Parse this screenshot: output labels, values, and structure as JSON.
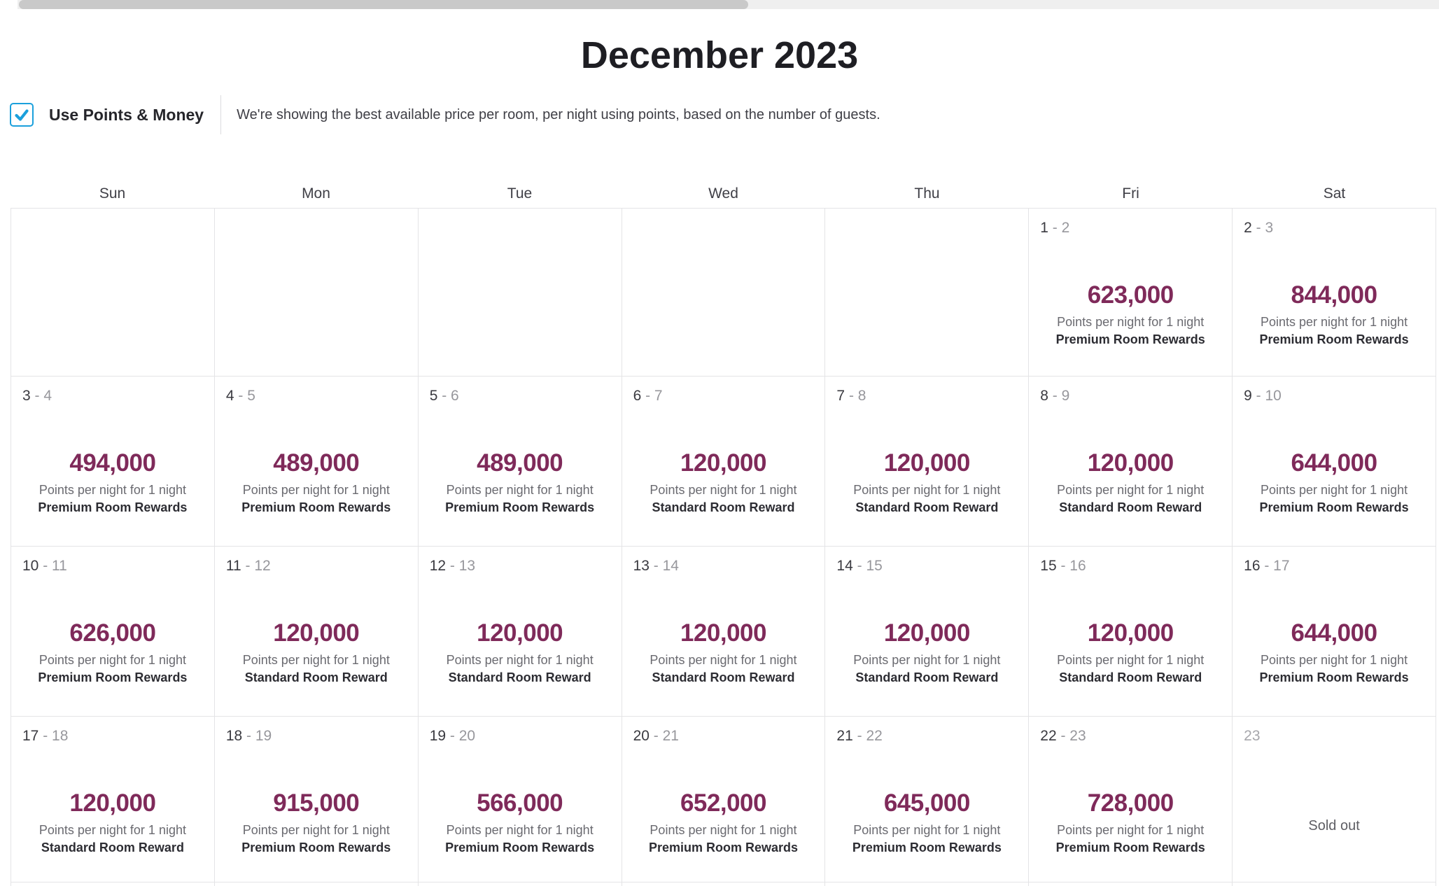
{
  "header": {
    "title": "December 2023",
    "filter": {
      "label": "Use Points & Money",
      "checkbox_checked": true,
      "description": "We're showing the best available price per room, per night using points, based on the number of guests."
    }
  },
  "calendar": {
    "day_headers": [
      "Sun",
      "Mon",
      "Tue",
      "Wed",
      "Thu",
      "Fri",
      "Sat"
    ],
    "points_caption": "Points per night for 1 night",
    "sold_out_label": "Sold out",
    "room_types": {
      "premium": "Premium Room Rewards",
      "standard": "Standard Room Reward"
    },
    "weeks": [
      [
        {
          "empty": true
        },
        {
          "empty": true
        },
        {
          "empty": true
        },
        {
          "empty": true
        },
        {
          "empty": true
        },
        {
          "date": "1",
          "end": "2",
          "points": "623,000",
          "room": "Premium Room Rewards"
        },
        {
          "date": "2",
          "end": "3",
          "points": "844,000",
          "room": "Premium Room Rewards"
        }
      ],
      [
        {
          "date": "3",
          "end": "4",
          "points": "494,000",
          "room": "Premium Room Rewards"
        },
        {
          "date": "4",
          "end": "5",
          "points": "489,000",
          "room": "Premium Room Rewards"
        },
        {
          "date": "5",
          "end": "6",
          "points": "489,000",
          "room": "Premium Room Rewards"
        },
        {
          "date": "6",
          "end": "7",
          "points": "120,000",
          "room": "Standard Room Reward"
        },
        {
          "date": "7",
          "end": "8",
          "points": "120,000",
          "room": "Standard Room Reward"
        },
        {
          "date": "8",
          "end": "9",
          "points": "120,000",
          "room": "Standard Room Reward"
        },
        {
          "date": "9",
          "end": "10",
          "points": "644,000",
          "room": "Premium Room Rewards"
        }
      ],
      [
        {
          "date": "10",
          "end": "11",
          "points": "626,000",
          "room": "Premium Room Rewards"
        },
        {
          "date": "11",
          "end": "12",
          "points": "120,000",
          "room": "Standard Room Reward"
        },
        {
          "date": "12",
          "end": "13",
          "points": "120,000",
          "room": "Standard Room Reward"
        },
        {
          "date": "13",
          "end": "14",
          "points": "120,000",
          "room": "Standard Room Reward"
        },
        {
          "date": "14",
          "end": "15",
          "points": "120,000",
          "room": "Standard Room Reward"
        },
        {
          "date": "15",
          "end": "16",
          "points": "120,000",
          "room": "Standard Room Reward"
        },
        {
          "date": "16",
          "end": "17",
          "points": "644,000",
          "room": "Premium Room Rewards"
        }
      ],
      [
        {
          "date": "17",
          "end": "18",
          "points": "120,000",
          "room": "Standard Room Reward"
        },
        {
          "date": "18",
          "end": "19",
          "points": "915,000",
          "room": "Premium Room Rewards"
        },
        {
          "date": "19",
          "end": "20",
          "points": "566,000",
          "room": "Premium Room Rewards"
        },
        {
          "date": "20",
          "end": "21",
          "points": "652,000",
          "room": "Premium Room Rewards"
        },
        {
          "date": "21",
          "end": "22",
          "points": "645,000",
          "room": "Premium Room Rewards"
        },
        {
          "date": "22",
          "end": "23",
          "points": "728,000",
          "room": "Premium Room Rewards"
        },
        {
          "date": "23",
          "sold_out": true
        }
      ],
      [
        {
          "empty": true
        },
        {
          "empty": true
        },
        {
          "empty": true
        },
        {
          "empty": true
        },
        {
          "empty": true
        },
        {
          "empty": true
        },
        {
          "empty": true
        }
      ]
    ]
  },
  "colors": {
    "accent_blue": "#1ba0dc",
    "points_value": "#7f2a5a",
    "grid_border": "#e4e4e6",
    "scrollbar_thumb": "#c9c9c9"
  }
}
